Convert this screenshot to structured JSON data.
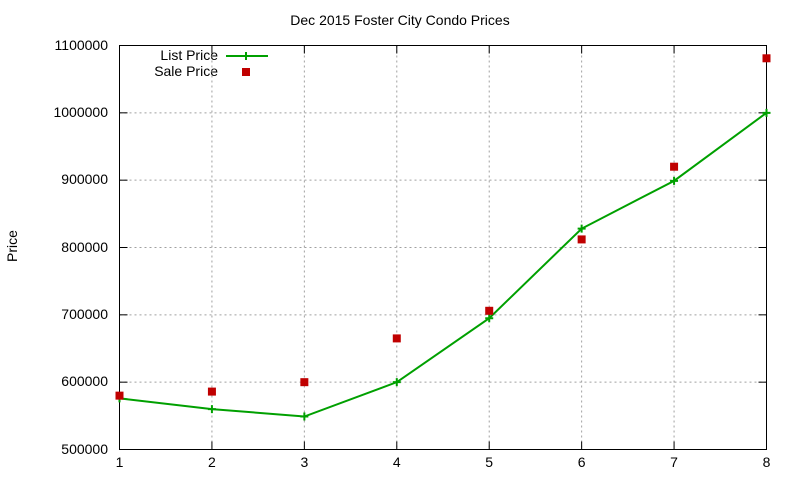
{
  "chart_data": {
    "type": "line",
    "title": "Dec 2015 Foster City Condo Prices",
    "xlabel": "",
    "ylabel": "Price",
    "x": [
      1,
      2,
      3,
      4,
      5,
      6,
      7,
      8
    ],
    "xlim": [
      1,
      8
    ],
    "ylim": [
      500000,
      1100000
    ],
    "xticks": [
      "1",
      "2",
      "3",
      "4",
      "5",
      "6",
      "7",
      "8"
    ],
    "yticks": [
      "500000",
      "600000",
      "700000",
      "800000",
      "900000",
      "1000000",
      "1100000"
    ],
    "grid": true,
    "legend_position": "top-left",
    "series": [
      {
        "name": "List Price",
        "style": "linespoints",
        "marker": "plus",
        "color": "#00a000",
        "values": [
          576000,
          560000,
          549000,
          600000,
          695000,
          828000,
          899000,
          1000000
        ]
      },
      {
        "name": "Sale Price",
        "style": "points",
        "marker": "square",
        "color": "#c00000",
        "values": [
          580000,
          586000,
          600000,
          665000,
          706000,
          812000,
          920000,
          1081000
        ]
      }
    ]
  },
  "legend": {
    "list_label": "List Price",
    "sale_label": "Sale Price"
  }
}
